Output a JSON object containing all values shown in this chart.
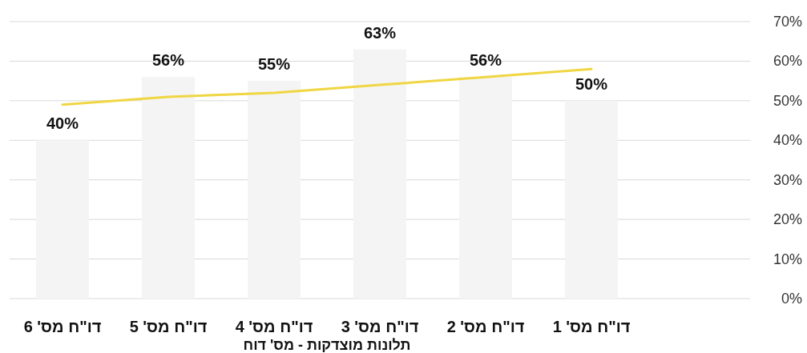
{
  "chart_data": {
    "type": "bar",
    "xlabel": "תלונות מוצדקות - מס' דוח",
    "categories": [
      "דו\"ח מס' 6",
      "דו\"ח מס' 5",
      "דו\"ח מס' 4",
      "דו\"ח מס' 3",
      "דו\"ח מס' 2",
      "דו\"ח מס' 1"
    ],
    "series": [
      {
        "color": "#f4f4f4",
        "values": [
          40,
          56,
          55,
          63,
          56,
          50
        ],
        "value_labels": [
          "40%",
          "56%",
          "55%",
          "63%",
          "56%",
          "50%"
        ]
      },
      {
        "type": "line",
        "color": "#f0d642",
        "values": [
          49,
          51,
          52,
          54,
          56,
          58
        ]
      }
    ],
    "ylim": [
      0,
      70
    ],
    "yticks": [
      {
        "value": 0,
        "label": "0%"
      },
      {
        "value": 10,
        "label": "10%"
      },
      {
        "value": 20,
        "label": "20%"
      },
      {
        "value": 30,
        "label": "30%"
      },
      {
        "value": 40,
        "label": "40%"
      },
      {
        "value": 50,
        "label": "50%"
      },
      {
        "value": 60,
        "label": "60%"
      },
      {
        "value": 70,
        "label": "70%"
      }
    ],
    "grid": "y"
  }
}
